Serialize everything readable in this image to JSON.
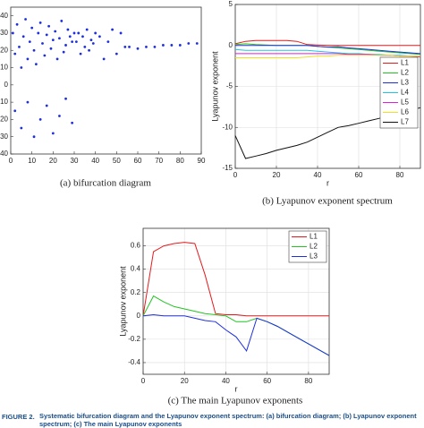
{
  "chart_data": [
    {
      "type": "scatter",
      "caption": "(a) bifurcation diagram",
      "color": "#1f2fe0",
      "grid": false,
      "x": [
        1,
        2,
        3,
        4,
        5,
        6,
        7,
        8,
        9,
        10,
        11,
        12,
        13,
        14,
        15,
        16,
        17,
        18,
        19,
        20,
        21,
        22,
        23,
        24,
        25,
        26,
        27,
        28,
        29,
        30,
        2,
        5,
        8,
        11,
        14,
        17,
        20,
        23,
        26,
        29,
        31,
        32,
        33,
        34,
        35,
        36,
        37,
        38,
        39,
        40,
        42,
        44,
        46,
        48,
        50,
        52,
        54,
        56,
        60,
        64,
        68,
        72,
        76,
        80,
        84,
        88
      ],
      "y": [
        30,
        18,
        35,
        22,
        10,
        28,
        38,
        15,
        25,
        33,
        20,
        12,
        30,
        36,
        24,
        17,
        29,
        34,
        21,
        26,
        31,
        15,
        27,
        37,
        19,
        23,
        32,
        28,
        25,
        30,
        -15,
        -25,
        -10,
        -30,
        -20,
        -12,
        -28,
        -18,
        -8,
        -22,
        25,
        30,
        18,
        28,
        22,
        32,
        20,
        26,
        24,
        30,
        28,
        15,
        25,
        32,
        18,
        30,
        22,
        22,
        21,
        22,
        22,
        23,
        23,
        23,
        24,
        24
      ],
      "xlim": [
        0,
        90
      ],
      "xticks": [
        0,
        10,
        20,
        30,
        40,
        50,
        60,
        70,
        80,
        90
      ],
      "ylim": [
        -40,
        45
      ],
      "yticks": [
        -40,
        -30,
        -20,
        -10,
        0,
        10,
        20,
        30,
        40
      ]
    },
    {
      "type": "line",
      "caption": "(b) Lyapunov exponent spectrum",
      "xlabel": "r",
      "ylabel": "Lyapunov exponent",
      "grid": true,
      "legend": "right",
      "x": [
        0,
        5,
        10,
        15,
        20,
        25,
        30,
        35,
        40,
        45,
        50,
        55,
        60,
        65,
        70,
        75,
        80,
        85,
        90
      ],
      "series": [
        {
          "name": "L1",
          "color": "#e41a1c",
          "values": [
            0.2,
            0.5,
            0.6,
            0.6,
            0.6,
            0.6,
            0.5,
            0.1,
            0.05,
            0.02,
            0,
            0,
            0,
            0,
            0,
            0,
            0,
            0,
            0
          ]
        },
        {
          "name": "L2",
          "color": "#22c422",
          "values": [
            0.1,
            0.2,
            0.1,
            0.05,
            0,
            0,
            0,
            0,
            -0.1,
            -0.2,
            -0.3,
            -0.4,
            -0.5,
            -0.6,
            -0.7,
            -0.8,
            -0.9,
            -1.0,
            -1.1
          ]
        },
        {
          "name": "L3",
          "color": "#1f2fe0",
          "values": [
            0,
            0,
            0,
            0,
            0,
            0,
            0,
            0,
            -0.1,
            -0.2,
            -0.15,
            -0.3,
            -0.4,
            -0.5,
            -0.6,
            -0.7,
            -0.8,
            -0.9,
            -1.0
          ]
        },
        {
          "name": "L4",
          "color": "#19c8e6",
          "values": [
            -0.5,
            -0.6,
            -0.6,
            -0.6,
            -0.6,
            -0.6,
            -0.6,
            -0.6,
            -0.7,
            -0.8,
            -0.9,
            -1.0,
            -1.0,
            -1.1,
            -1.1,
            -1.2,
            -1.2,
            -1.3,
            -1.3
          ]
        },
        {
          "name": "L5",
          "color": "#e01ee0",
          "values": [
            -1,
            -1,
            -1,
            -1,
            -1,
            -1,
            -1,
            -1,
            -1,
            -1,
            -1,
            -1.1,
            -1.1,
            -1.1,
            -1.2,
            -1.2,
            -1.3,
            -1.3,
            -1.4
          ]
        },
        {
          "name": "L6",
          "color": "#f0e020",
          "values": [
            -1.5,
            -1.5,
            -1.5,
            -1.5,
            -1.5,
            -1.5,
            -1.5,
            -1.4,
            -1.3,
            -1.3,
            -1.2,
            -1.2,
            -1.2,
            -1.2,
            -1.2,
            -1.2,
            -1.3,
            -1.3,
            -1.3
          ]
        },
        {
          "name": "L7",
          "color": "#111111",
          "values": [
            -11,
            -13.8,
            -13.5,
            -13.2,
            -12.8,
            -12.5,
            -12.2,
            -11.8,
            -11.2,
            -10.6,
            -10,
            -9.8,
            -9.5,
            -9.2,
            -8.9,
            -8.5,
            -8.2,
            -7.9,
            -7.6
          ]
        }
      ],
      "xlim": [
        0,
        90
      ],
      "xticks": [
        0,
        20,
        40,
        60,
        80
      ],
      "ylim": [
        -15,
        5
      ],
      "yticks": [
        -15,
        -10,
        -5,
        0,
        5
      ]
    },
    {
      "type": "line",
      "caption": "(c) The main Lyapunov exponents",
      "xlabel": "r",
      "ylabel": "Lyapunov exponent",
      "grid": true,
      "legend": "upper right",
      "x": [
        0,
        5,
        10,
        15,
        20,
        25,
        30,
        35,
        40,
        45,
        50,
        55,
        60,
        65,
        70,
        75,
        80,
        85,
        90
      ],
      "series": [
        {
          "name": "L1",
          "color": "#e41a1c",
          "values": [
            0,
            0.55,
            0.6,
            0.62,
            0.63,
            0.62,
            0.35,
            0.02,
            0.01,
            0.01,
            0,
            0,
            0,
            0,
            0,
            0,
            0,
            0,
            0
          ]
        },
        {
          "name": "L2",
          "color": "#22c422",
          "values": [
            0,
            0.17,
            0.12,
            0.08,
            0.06,
            0.04,
            0.02,
            0.01,
            0,
            -0.05,
            -0.05,
            -0.02,
            -0.05,
            -0.09,
            -0.14,
            -0.19,
            -0.24,
            -0.29,
            -0.34
          ]
        },
        {
          "name": "L3",
          "color": "#1f2fe0",
          "values": [
            0,
            0.01,
            0,
            0,
            0,
            -0.02,
            -0.04,
            -0.05,
            -0.12,
            -0.18,
            -0.3,
            -0.02,
            -0.05,
            -0.09,
            -0.14,
            -0.19,
            -0.24,
            -0.29,
            -0.34
          ]
        }
      ],
      "xlim": [
        0,
        90
      ],
      "xticks": [
        0,
        20,
        40,
        60,
        80
      ],
      "ylim": [
        -0.5,
        0.75
      ],
      "yticks": [
        -0.4,
        -0.2,
        0,
        0.2,
        0.4,
        0.6
      ]
    }
  ],
  "figure_caption": {
    "label": "FIGURE 2.",
    "text": "Systematic bifurcation diagram and the Lyapunov exponent spectrum: (a) bifurcation diagram; (b) Lyapunov exponent spectrum; (c) The main Lyapunov exponents"
  }
}
